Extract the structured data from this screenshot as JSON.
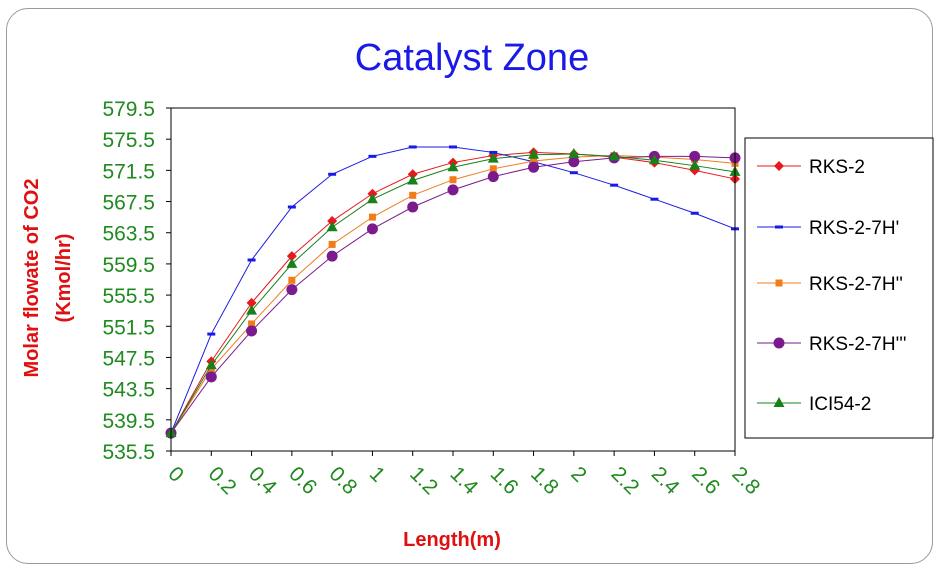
{
  "chart_data": {
    "type": "line",
    "title": "Catalyst Zone",
    "xlabel": "Length(m)",
    "ylabel": "Molar flowate of CO2 (Kmol/hr)",
    "ylabel_lines": [
      "Molar flowate of CO2",
      "(Kmol/hr)"
    ],
    "x": [
      0,
      0.2,
      0.4,
      0.6,
      0.8,
      1,
      1.2,
      1.4,
      1.6,
      1.8,
      2,
      2.2,
      2.4,
      2.6,
      2.8
    ],
    "x_tick_labels": [
      "0",
      "0.2",
      "0.4",
      "0.6",
      "0.8",
      "1",
      "1.2",
      "1.4",
      "1.6",
      "1.8",
      "2",
      "2.2",
      "2.4",
      "2.6",
      "2.8"
    ],
    "y_tick_labels": [
      "579.5",
      "575.5",
      "571.5",
      "567.5",
      "563.5",
      "559.5",
      "555.5",
      "551.5",
      "547.5",
      "543.5",
      "539.5",
      "535.5"
    ],
    "ylim": [
      535.5,
      579.5
    ],
    "grid": false,
    "legend_position": "right",
    "series": [
      {
        "name": "RKS-2",
        "color": "#e8181c",
        "marker": "diamond",
        "values": [
          537.8,
          547.0,
          554.5,
          560.5,
          565.0,
          568.5,
          571.0,
          572.5,
          573.4,
          573.8,
          573.6,
          573.2,
          572.5,
          571.5,
          570.4
        ]
      },
      {
        "name": "RKS-2-7H'",
        "color": "#1a1ae6",
        "marker": "dash",
        "values": [
          537.8,
          550.5,
          560.0,
          566.8,
          571.0,
          573.3,
          574.5,
          574.5,
          573.8,
          572.6,
          571.2,
          569.6,
          567.8,
          566.0,
          564.0
        ]
      },
      {
        "name": "RKS-2-7H''",
        "color": "#f07d1a",
        "marker": "square",
        "values": [
          537.8,
          546.0,
          551.8,
          557.4,
          562.0,
          565.5,
          568.3,
          570.3,
          571.7,
          572.7,
          573.2,
          573.4,
          573.2,
          572.9,
          572.4
        ]
      },
      {
        "name": "RKS-2-7H'''",
        "color": "#7a1a8c",
        "marker": "circle",
        "values": [
          537.8,
          545.0,
          550.9,
          556.2,
          560.5,
          564.0,
          566.8,
          569.0,
          570.7,
          571.9,
          572.6,
          573.1,
          573.3,
          573.3,
          573.1
        ]
      },
      {
        "name": "ICI54-2",
        "color": "#1a801a",
        "marker": "triangle",
        "values": [
          537.8,
          546.5,
          553.5,
          559.5,
          564.2,
          567.8,
          570.2,
          571.9,
          573.0,
          573.5,
          573.6,
          573.3,
          572.8,
          572.1,
          571.3
        ]
      }
    ]
  }
}
